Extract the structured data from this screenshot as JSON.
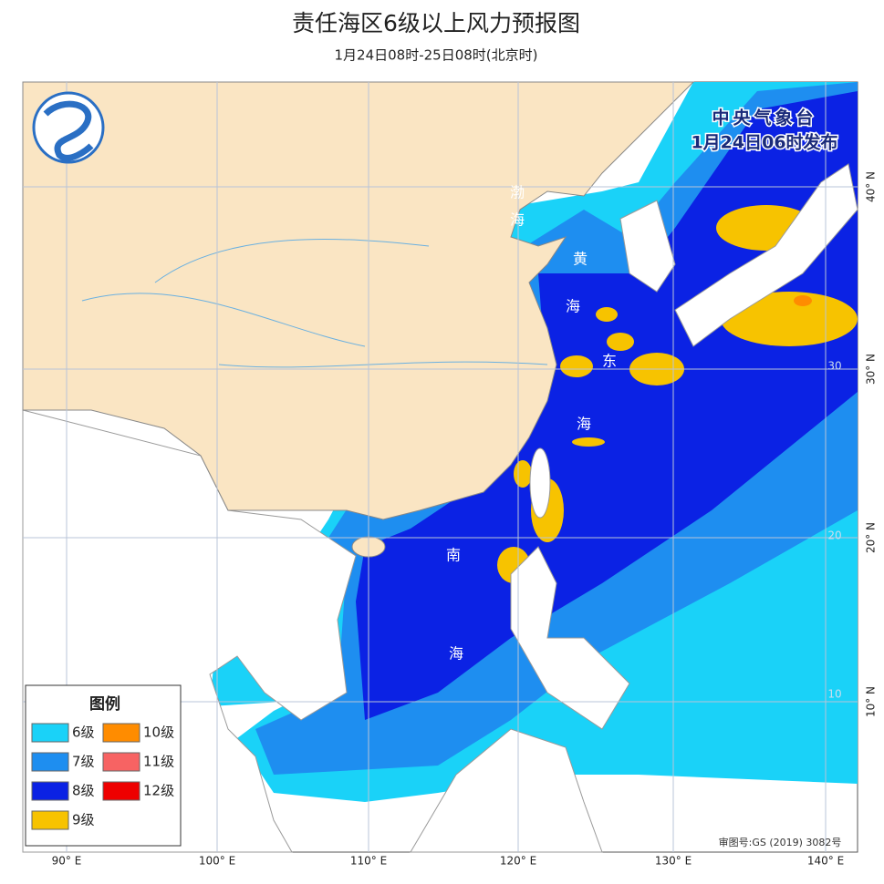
{
  "header": {
    "title": "责任海区6级以上风力预报图",
    "subtitle": "1月24日08时-25日08时(北京时)"
  },
  "publisher": {
    "name": "中央气象台",
    "time": "1月24日06时发布"
  },
  "legend": {
    "title": "图例",
    "items": [
      {
        "label": "6级",
        "color": "#1ad2f8"
      },
      {
        "label": "7级",
        "color": "#1e8ef0"
      },
      {
        "label": "8级",
        "color": "#0b22e4"
      },
      {
        "label": "9级",
        "color": "#f7c300"
      },
      {
        "label": "10级",
        "color": "#ff8c00"
      },
      {
        "label": "11级",
        "color": "#f76363"
      },
      {
        "label": "12级",
        "color": "#ee0000"
      }
    ]
  },
  "map": {
    "lon_labels": [
      "90° E",
      "100° E",
      "110° E",
      "120° E",
      "130° E",
      "140° E"
    ],
    "lat_labels": [
      "40° N",
      "30° N",
      "20° N",
      "10° N"
    ],
    "lat_inner_labels": [
      "30",
      "20",
      "10"
    ],
    "sea_labels": [
      "渤",
      "海",
      "黄",
      "海",
      "东",
      "海",
      "南",
      "海"
    ]
  },
  "approval": "审图号:GS (2019) 3082号"
}
